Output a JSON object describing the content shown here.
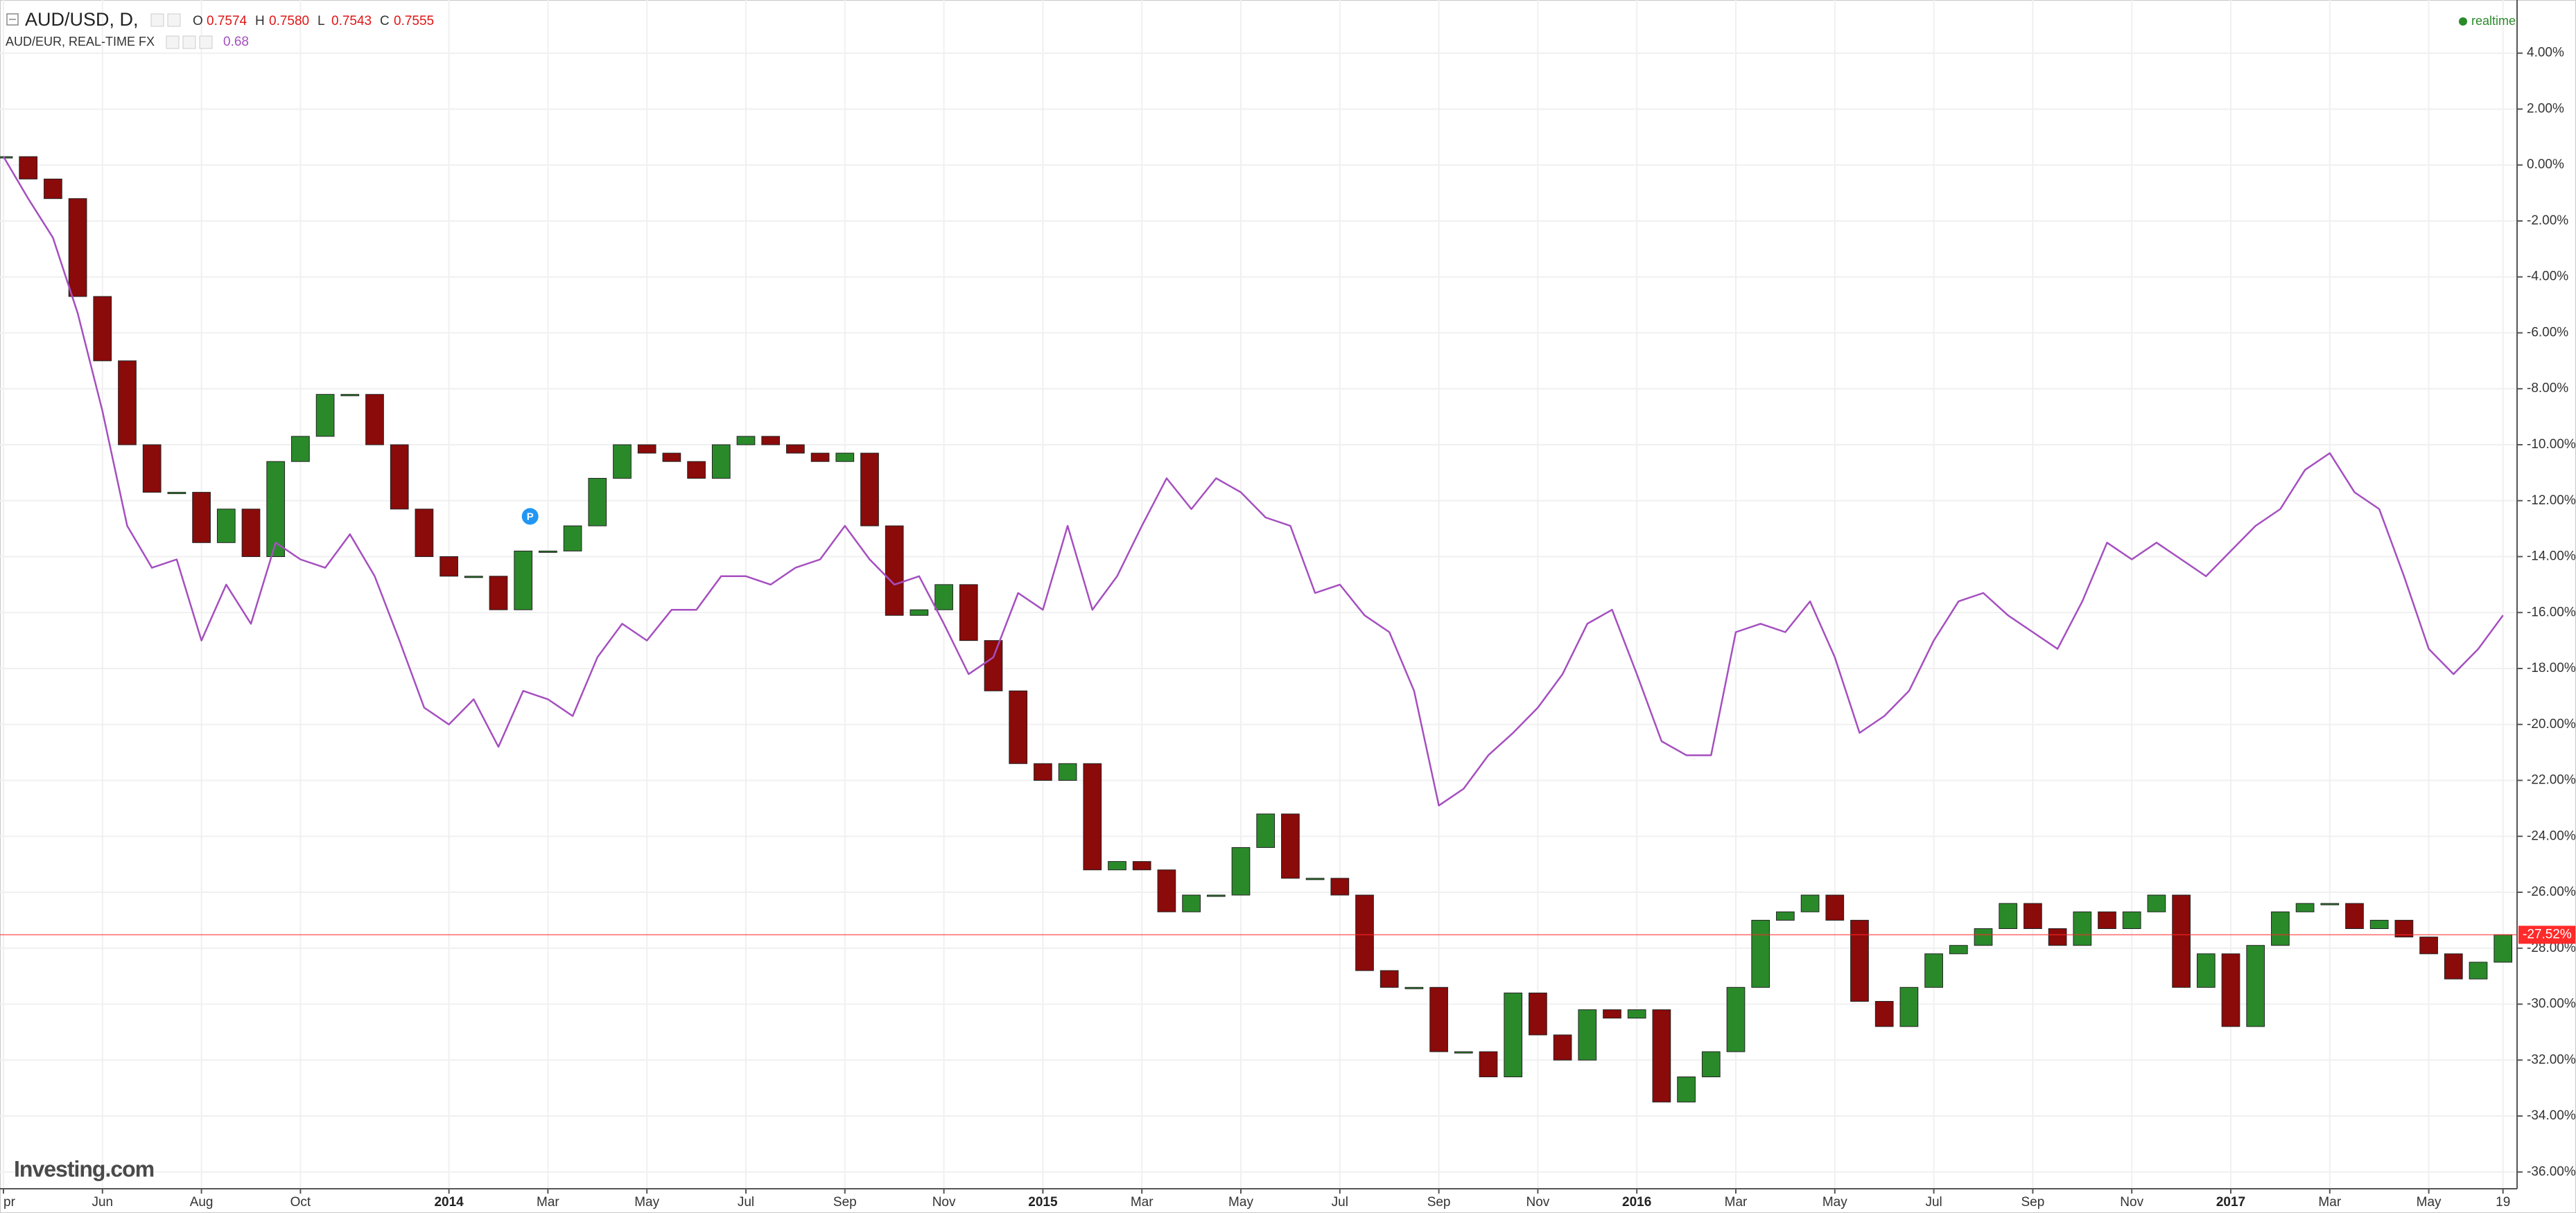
{
  "chart_data": {
    "type": "candlestick",
    "symbol": "AUD/USD, D,",
    "ohlc": [
      {
        "key": "O",
        "value": "0.7574"
      },
      {
        "key": "H",
        "value": "0.7580"
      },
      {
        "key": "L",
        "value": "0.7543"
      },
      {
        "key": "C",
        "value": "0.7555"
      }
    ],
    "status": "realtime",
    "brand": "Investing.com",
    "marker": "P",
    "categories": [
      "pr",
      null,
      null,
      null,
      "Jun",
      null,
      null,
      null,
      "Aug",
      null,
      null,
      null,
      "Oct",
      null,
      null,
      null,
      null,
      null,
      "2014",
      null,
      null,
      null,
      "Mar",
      null,
      null,
      null,
      "May",
      null,
      null,
      null,
      "Jul",
      null,
      null,
      null,
      "Sep",
      null,
      null,
      null,
      "Nov",
      null,
      null,
      null,
      "2015",
      null,
      null,
      null,
      "Mar",
      null,
      null,
      null,
      "May",
      null,
      null,
      null,
      "Jul",
      null,
      null,
      null,
      "Sep",
      null,
      null,
      null,
      "Nov",
      null,
      null,
      null,
      "2016",
      null,
      null,
      null,
      "Mar",
      null,
      null,
      null,
      "May",
      null,
      null,
      null,
      "Jul",
      null,
      null,
      null,
      "Sep",
      null,
      null,
      null,
      "Nov",
      null,
      null,
      null,
      "2017",
      null,
      null,
      null,
      "Mar",
      null,
      null,
      null,
      "May",
      null,
      null,
      "19"
    ],
    "series": [
      {
        "name": "AUD/USD, D,",
        "type": "candlestick",
        "up_color": "#2a8a2a",
        "down_color": "#8b0a0a",
        "values": [
          0.3,
          -0.5,
          -1.2,
          -4.7,
          -7,
          -10,
          -11.7,
          -11.7,
          -13.5,
          -12.3,
          -14,
          -10.6,
          -9.7,
          -8.2,
          -8.2,
          -10,
          -12.3,
          -14,
          -14.7,
          -14.7,
          -15.9,
          -13.8,
          -13.8,
          -12.9,
          -11.2,
          -10,
          -10.3,
          -10.6,
          -11.2,
          -10,
          -9.7,
          -10,
          -10.3,
          -10.6,
          -10.3,
          -12.9,
          -16.1,
          -15.9,
          -15,
          -17,
          -18.8,
          -21.4,
          -22,
          -21.4,
          -25.2,
          -24.9,
          -25.2,
          -26.7,
          -26.1,
          -26.1,
          -24.4,
          -23.2,
          -25.5,
          -25.5,
          -26.1,
          -28.8,
          -29.4,
          -29.4,
          -31.7,
          -31.7,
          -32.6,
          -29.6,
          -31.1,
          -32,
          -30.2,
          -30.5,
          -30.2,
          -33.5,
          -32.6,
          -31.7,
          -29.4,
          -27,
          -26.7,
          -26.1,
          -27,
          -29.9,
          -30.8,
          -29.4,
          -28.2,
          -27.9,
          -27.3,
          -26.4,
          -27.3,
          -27.9,
          -26.7,
          -27.3,
          -26.7,
          -26.1,
          -29.4,
          -28.2,
          -30.8,
          -27.9,
          -26.7,
          -26.4,
          -26.4,
          -27.3,
          -27,
          -27.6,
          -28.2,
          -29.1,
          -28.5,
          -27.52
        ]
      },
      {
        "name": "AUD/EUR, REAL-TIME FX",
        "type": "line",
        "color": "#a54fc0",
        "last": "0.68",
        "values": [
          0.3,
          -1.2,
          -2.6,
          -5.3,
          -8.8,
          -12.9,
          -14.4,
          -14.1,
          -17,
          -15,
          -16.4,
          -13.5,
          -14.1,
          -14.4,
          -13.2,
          -14.7,
          -17,
          -19.4,
          -20,
          -19.1,
          -20.8,
          -18.8,
          -19.1,
          -19.7,
          -17.6,
          -16.4,
          -17,
          -15.9,
          -15.9,
          -14.7,
          -14.7,
          -15,
          -14.4,
          -14.1,
          -12.9,
          -14.1,
          -15,
          -14.7,
          -16.4,
          -18.2,
          -17.6,
          -15.3,
          -15.9,
          -12.9,
          -15.9,
          -14.7,
          -12.9,
          -11.2,
          -12.3,
          -11.2,
          -11.7,
          -12.6,
          -12.9,
          -15.3,
          -15,
          -16.1,
          -16.7,
          -18.8,
          -22.9,
          -22.3,
          -21.1,
          -20.3,
          -19.4,
          -18.2,
          -16.4,
          -15.9,
          -18.2,
          -20.6,
          -21.1,
          -21.1,
          -16.7,
          -16.4,
          -16.7,
          -15.6,
          -17.6,
          -20.3,
          -19.7,
          -18.8,
          -17,
          -15.6,
          -15.3,
          -16.1,
          -16.7,
          -17.3,
          -15.6,
          -13.5,
          -14.1,
          -13.5,
          -14.1,
          -14.7,
          -13.8,
          -12.9,
          -12.3,
          -10.9,
          -10.3,
          -11.7,
          -12.3,
          -14.7,
          -17.3,
          -18.2,
          -17.3,
          -16.1
        ]
      }
    ],
    "last_value": {
      "value": -27.52,
      "label": "-27.52%",
      "color": "#ff2a2a"
    },
    "ylim": [
      -36.6,
      5.9
    ],
    "yticks": [
      {
        "value": 4,
        "label": "4.00%"
      },
      {
        "value": 2,
        "label": "2.00%"
      },
      {
        "value": 0,
        "label": "0.00%"
      },
      {
        "value": -2,
        "label": "-2.00%"
      },
      {
        "value": -4,
        "label": "-4.00%"
      },
      {
        "value": -6,
        "label": "-6.00%"
      },
      {
        "value": -8,
        "label": "-8.00%"
      },
      {
        "value": -10,
        "label": "-10.00%"
      },
      {
        "value": -12,
        "label": "-12.00%"
      },
      {
        "value": -14,
        "label": "-14.00%"
      },
      {
        "value": -16,
        "label": "-16.00%"
      },
      {
        "value": -18,
        "label": "-18.00%"
      },
      {
        "value": -20,
        "label": "-20.00%"
      },
      {
        "value": -22,
        "label": "-22.00%"
      },
      {
        "value": -24,
        "label": "-24.00%"
      },
      {
        "value": -26,
        "label": "-26.00%"
      },
      {
        "value": -28,
        "label": "-28.00%"
      },
      {
        "value": -30,
        "label": "-30.00%"
      },
      {
        "value": -32,
        "label": "-32.00%"
      },
      {
        "value": -34,
        "label": "-34.00%"
      },
      {
        "value": -36,
        "label": "-36.00%"
      }
    ],
    "grid": true
  }
}
